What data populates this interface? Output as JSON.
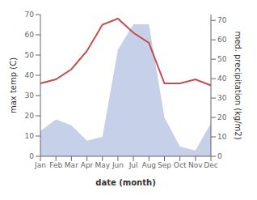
{
  "chart_data": {
    "type": "line",
    "xlabel": "date (month)",
    "ylabel": "max temp (C)",
    "y2label": "med. precipitation (kg/m2)",
    "categories": [
      "Jan",
      "Feb",
      "Mar",
      "Apr",
      "May",
      "Jun",
      "Jul",
      "Aug",
      "Sep",
      "Oct",
      "Nov",
      "Dec"
    ],
    "series": [
      {
        "type": "area",
        "axis": "y2",
        "color": "#c6d0e8",
        "values": [
          13,
          19,
          16,
          8,
          10,
          55,
          68,
          68,
          20,
          5,
          3,
          17
        ]
      },
      {
        "type": "line",
        "color": "#c0504d",
        "values": [
          36,
          38,
          43,
          52,
          65,
          68,
          61,
          56,
          36,
          36,
          38,
          35
        ]
      }
    ],
    "ylim": [
      0,
      70
    ],
    "yticks": [
      0,
      10,
      20,
      30,
      40,
      50,
      60,
      70
    ],
    "y2lim": [
      0,
      73
    ],
    "y2ticks": [
      0,
      10,
      20,
      30,
      40,
      50,
      60,
      70
    ],
    "grid": false
  }
}
